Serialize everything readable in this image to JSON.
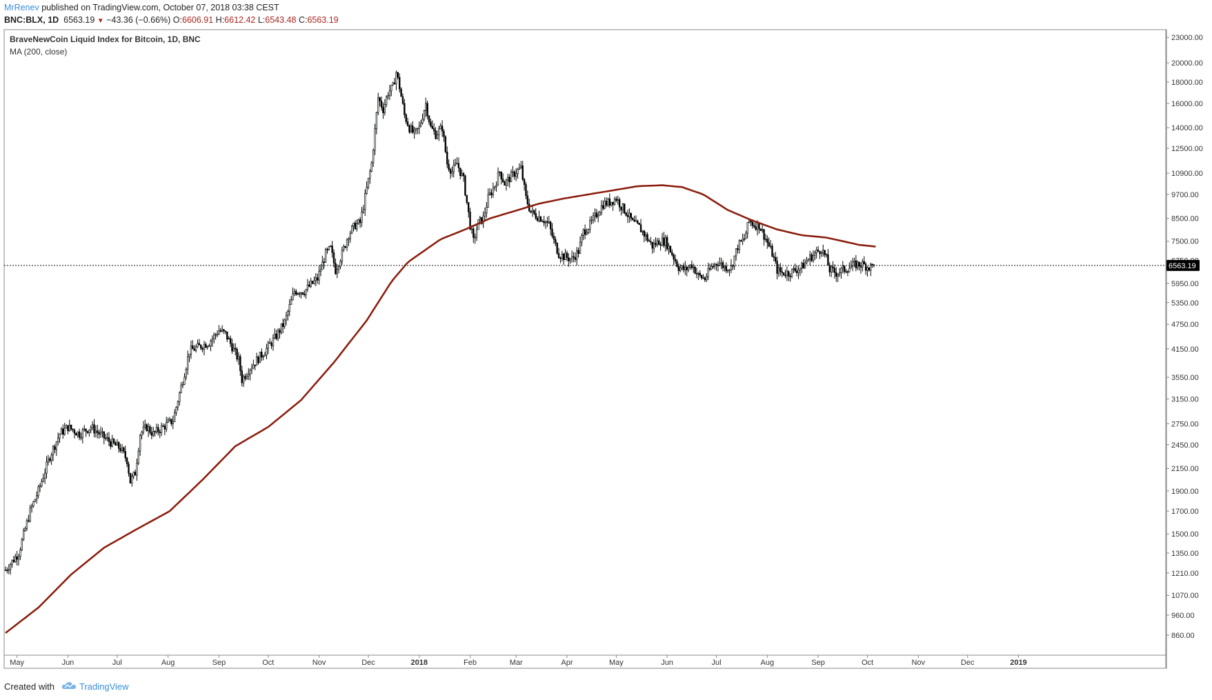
{
  "header": {
    "author": "MrRenev",
    "published_text": "published on TradingView.com, October 07, 2018 03:38 CEST",
    "symbol": "BNC:BLX, 1D",
    "last_price": "6563.19",
    "change": "−43.36 (−0.66%)",
    "open_label": "O:",
    "open": "6606.91",
    "high_label": "H:",
    "high": "6612.42",
    "low_label": "L:",
    "low": "6543.48",
    "close_label": "C:",
    "close": "6563.19"
  },
  "footer": {
    "created_with": "Created with",
    "brand": "TradingView"
  },
  "colors": {
    "up": "#dff0df",
    "down": "#000000",
    "wick": "#000000",
    "ma": "#8b1e0e",
    "price_label_bg": "#000000",
    "accent": "#3a8ddf"
  },
  "chart_data": {
    "type": "candlestick",
    "title": "BraveNewCoin Liquid Index for Bitcoin, 1D, BNC",
    "indicator_label": "MA (200, close)",
    "scale": "log",
    "ylim": [
      770,
      24000
    ],
    "y_ticks": [
      23000,
      20000,
      18000,
      16000,
      14000,
      12500,
      10900,
      9700,
      8500,
      7500,
      6750,
      5950,
      5350,
      4750,
      4150,
      3550,
      3150,
      2750,
      2450,
      2150,
      1900,
      1700,
      1500,
      1350,
      1210,
      1070,
      960,
      860
    ],
    "y_tick_labels": [
      "23000.00",
      "20000.00",
      "18000.00",
      "16000.00",
      "14000.00",
      "12500.00",
      "10900.00",
      "9700.00",
      "8500.00",
      "7500.00",
      "6750.00",
      "5950.00",
      "5350.00",
      "4750.00",
      "4150.00",
      "3550.00",
      "3150.00",
      "2750.00",
      "2450.00",
      "2150.00",
      "1900.00",
      "1700.00",
      "1500.00",
      "1350.00",
      "1210.00",
      "1070.00",
      "960.00",
      "860.00"
    ],
    "x_range_days": [
      0,
      635
    ],
    "x_ticks": [
      {
        "label": "May",
        "day": 7
      },
      {
        "label": "Jun",
        "day": 38
      },
      {
        "label": "Jul",
        "day": 68
      },
      {
        "label": "Aug",
        "day": 99
      },
      {
        "label": "Sep",
        "day": 130
      },
      {
        "label": "Oct",
        "day": 160
      },
      {
        "label": "Nov",
        "day": 191
      },
      {
        "label": "Dec",
        "day": 221
      },
      {
        "label": "2018",
        "day": 252,
        "bold": true
      },
      {
        "label": "Feb",
        "day": 283
      },
      {
        "label": "Mar",
        "day": 311
      },
      {
        "label": "Apr",
        "day": 342
      },
      {
        "label": "May",
        "day": 372
      },
      {
        "label": "Jun",
        "day": 403
      },
      {
        "label": "Jul",
        "day": 433
      },
      {
        "label": "Aug",
        "day": 464
      },
      {
        "label": "Sep",
        "day": 495
      },
      {
        "label": "Oct",
        "day": 525
      },
      {
        "label": "Nov",
        "day": 556
      },
      {
        "label": "Dec",
        "day": 586
      },
      {
        "label": "2019",
        "day": 617,
        "bold": true
      }
    ],
    "price_line": {
      "value": 6563.19,
      "label": "6563.19"
    },
    "price_path": [
      [
        0,
        1230
      ],
      [
        8,
        1350
      ],
      [
        15,
        1700
      ],
      [
        20,
        1900
      ],
      [
        27,
        2300
      ],
      [
        33,
        2600
      ],
      [
        38,
        2700
      ],
      [
        45,
        2600
      ],
      [
        52,
        2700
      ],
      [
        60,
        2550
      ],
      [
        66,
        2450
      ],
      [
        70,
        2400
      ],
      [
        74,
        2250
      ],
      [
        76,
        2000
      ],
      [
        79,
        2100
      ],
      [
        82,
        2600
      ],
      [
        86,
        2700
      ],
      [
        90,
        2600
      ],
      [
        96,
        2700
      ],
      [
        102,
        2800
      ],
      [
        108,
        3500
      ],
      [
        112,
        4100
      ],
      [
        118,
        4200
      ],
      [
        124,
        4300
      ],
      [
        130,
        4600
      ],
      [
        134,
        4500
      ],
      [
        138,
        4200
      ],
      [
        142,
        3900
      ],
      [
        144,
        3500
      ],
      [
        148,
        3700
      ],
      [
        153,
        3900
      ],
      [
        158,
        4100
      ],
      [
        164,
        4400
      ],
      [
        170,
        4800
      ],
      [
        176,
        5700
      ],
      [
        182,
        5700
      ],
      [
        186,
        5900
      ],
      [
        190,
        6100
      ],
      [
        195,
        7000
      ],
      [
        198,
        7200
      ],
      [
        201,
        6400
      ],
      [
        205,
        7000
      ],
      [
        209,
        7800
      ],
      [
        213,
        8200
      ],
      [
        216,
        8300
      ],
      [
        220,
        10000
      ],
      [
        223,
        11500
      ],
      [
        227,
        16500
      ],
      [
        230,
        15500
      ],
      [
        233,
        17000
      ],
      [
        236,
        17500
      ],
      [
        238,
        19000
      ],
      [
        240,
        17500
      ],
      [
        243,
        15000
      ],
      [
        246,
        14000
      ],
      [
        249,
        13500
      ],
      [
        252,
        14000
      ],
      [
        256,
        16000
      ],
      [
        259,
        14000
      ],
      [
        262,
        13500
      ],
      [
        266,
        14000
      ],
      [
        269,
        11500
      ],
      [
        272,
        11000
      ],
      [
        275,
        11500
      ],
      [
        279,
        10500
      ],
      [
        283,
        8200
      ],
      [
        285,
        7500
      ],
      [
        288,
        8300
      ],
      [
        291,
        8500
      ],
      [
        294,
        9500
      ],
      [
        298,
        10200
      ],
      [
        301,
        11000
      ],
      [
        304,
        10300
      ],
      [
        307,
        10600
      ],
      [
        311,
        11000
      ],
      [
        314,
        11200
      ],
      [
        317,
        9500
      ],
      [
        320,
        8800
      ],
      [
        324,
        8600
      ],
      [
        327,
        8500
      ],
      [
        331,
        8200
      ],
      [
        334,
        7500
      ],
      [
        337,
        7000
      ],
      [
        340,
        6900
      ],
      [
        345,
        6800
      ],
      [
        349,
        7100
      ],
      [
        352,
        7900
      ],
      [
        356,
        8200
      ],
      [
        360,
        8700
      ],
      [
        364,
        9200
      ],
      [
        368,
        9300
      ],
      [
        372,
        9500
      ],
      [
        375,
        9100
      ],
      [
        378,
        8800
      ],
      [
        382,
        8300
      ],
      [
        386,
        8100
      ],
      [
        390,
        7700
      ],
      [
        394,
        7300
      ],
      [
        398,
        7500
      ],
      [
        402,
        7500
      ],
      [
        406,
        7000
      ],
      [
        410,
        6500
      ],
      [
        414,
        6400
      ],
      [
        418,
        6600
      ],
      [
        422,
        6200
      ],
      [
        426,
        6100
      ],
      [
        430,
        6500
      ],
      [
        434,
        6700
      ],
      [
        438,
        6500
      ],
      [
        442,
        6500
      ],
      [
        446,
        7300
      ],
      [
        450,
        7600
      ],
      [
        453,
        8400
      ],
      [
        456,
        8200
      ],
      [
        459,
        8200
      ],
      [
        463,
        7600
      ],
      [
        467,
        7000
      ],
      [
        470,
        6400
      ],
      [
        473,
        6300
      ],
      [
        477,
        6300
      ],
      [
        481,
        6400
      ],
      [
        485,
        6500
      ],
      [
        489,
        6800
      ],
      [
        493,
        7000
      ],
      [
        497,
        7200
      ],
      [
        500,
        6800
      ],
      [
        502,
        6400
      ],
      [
        506,
        6300
      ],
      [
        510,
        6400
      ],
      [
        514,
        6500
      ],
      [
        518,
        6600
      ],
      [
        522,
        6600
      ],
      [
        526,
        6500
      ],
      [
        529,
        6560
      ]
    ],
    "ma_path": [
      [
        0,
        870
      ],
      [
        20,
        1000
      ],
      [
        40,
        1200
      ],
      [
        60,
        1390
      ],
      [
        80,
        1540
      ],
      [
        100,
        1700
      ],
      [
        120,
        2020
      ],
      [
        140,
        2430
      ],
      [
        160,
        2700
      ],
      [
        180,
        3130
      ],
      [
        200,
        3850
      ],
      [
        220,
        4850
      ],
      [
        235,
        6000
      ],
      [
        245,
        6680
      ],
      [
        265,
        7580
      ],
      [
        280,
        8000
      ],
      [
        295,
        8500
      ],
      [
        310,
        8850
      ],
      [
        325,
        9220
      ],
      [
        340,
        9480
      ],
      [
        355,
        9700
      ],
      [
        370,
        9920
      ],
      [
        385,
        10150
      ],
      [
        400,
        10200
      ],
      [
        412,
        10100
      ],
      [
        425,
        9700
      ],
      [
        440,
        8900
      ],
      [
        455,
        8400
      ],
      [
        470,
        8000
      ],
      [
        485,
        7750
      ],
      [
        500,
        7650
      ],
      [
        510,
        7500
      ],
      [
        520,
        7350
      ],
      [
        530,
        7280
      ]
    ]
  }
}
